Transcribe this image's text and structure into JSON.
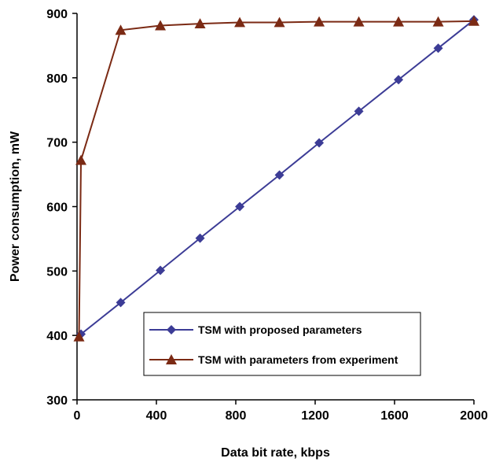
{
  "chart_data": {
    "type": "line",
    "title": "",
    "xlabel": "Data bit rate, kbps",
    "ylabel": "Power consumption, mW",
    "xlim": [
      0,
      2000
    ],
    "ylim": [
      300,
      900
    ],
    "xticks": [
      0,
      400,
      800,
      1200,
      1600,
      2000
    ],
    "yticks": [
      300,
      400,
      500,
      600,
      700,
      800,
      900
    ],
    "grid": false,
    "legend_position": "bottom-right",
    "series": [
      {
        "name": "TSM with proposed parameters",
        "color": "#3C3C96",
        "marker": "diamond",
        "x": [
          20,
          220,
          420,
          620,
          820,
          1020,
          1220,
          1420,
          1620,
          1820,
          2000
        ],
        "y": [
          402,
          451,
          501,
          551,
          600,
          649,
          699,
          748,
          797,
          846,
          890
        ]
      },
      {
        "name": "TSM with parameters from experiment",
        "color": "#7B2A14",
        "marker": "triangle",
        "x": [
          10,
          20,
          220,
          420,
          620,
          820,
          1020,
          1220,
          1420,
          1620,
          1820,
          2000
        ],
        "y": [
          398,
          672,
          874,
          881,
          884,
          886,
          886,
          887,
          887,
          887,
          887,
          888
        ]
      }
    ]
  }
}
